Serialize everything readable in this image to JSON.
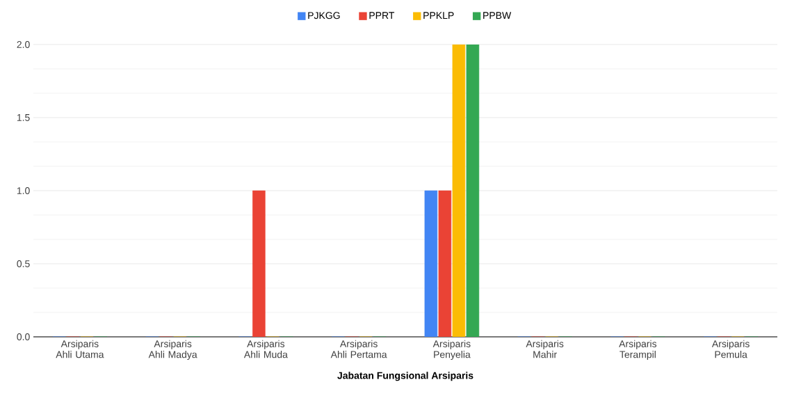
{
  "chart_data": {
    "type": "bar",
    "xlabel": "Jabatan Fungsional Arsiparis",
    "categories": [
      "Arsiparis Ahli Utama",
      "Arsiparis Ahli Madya",
      "Arsiparis Ahli Muda",
      "Arsiparis Ahli Pertama",
      "Arsiparis Penyelia",
      "Arsiparis Mahir",
      "Arsiparis Terampil",
      "Arsiparis Pemula"
    ],
    "series": [
      {
        "name": "PJKGG",
        "color": "#4285f4",
        "values": [
          0,
          0,
          0,
          0,
          1,
          0,
          0,
          0
        ]
      },
      {
        "name": "PPRT",
        "color": "#ea4335",
        "values": [
          0,
          0,
          1,
          0,
          1,
          0,
          0,
          0
        ]
      },
      {
        "name": "PPKLP",
        "color": "#fbbc04",
        "values": [
          0,
          0,
          0,
          0,
          2,
          0,
          0,
          0
        ]
      },
      {
        "name": "PPBW",
        "color": "#34a853",
        "values": [
          0,
          0,
          0,
          0,
          2,
          0,
          0,
          0
        ]
      }
    ],
    "ylim": [
      0,
      2
    ],
    "yticks": [
      {
        "value": 0,
        "label": "0.0"
      },
      {
        "value": 0.5,
        "label": "0.5"
      },
      {
        "value": 1,
        "label": "1.0"
      },
      {
        "value": 1.5,
        "label": "1.5"
      },
      {
        "value": 2,
        "label": "2.0"
      }
    ],
    "grid": "y",
    "legend": "top"
  }
}
